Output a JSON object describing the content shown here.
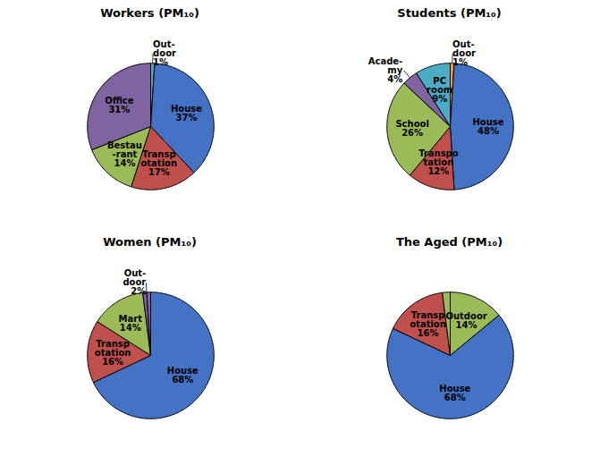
{
  "chart_data": [
    {
      "type": "pie",
      "title": "Workers (PM₁₀)",
      "values": [
        1,
        37,
        17,
        14,
        31
      ],
      "colors": [
        "#4bacc6",
        "#4472c4",
        "#c0504d",
        "#9bbb59",
        "#8064a2"
      ],
      "annotations": [
        {
          "text": "Out-\ndoor\n1%",
          "slices": [
            0
          ]
        },
        {
          "text": "House\n37%",
          "slices": [
            1
          ]
        },
        {
          "text": "Transp\notation\n17%",
          "slices": [
            2
          ]
        },
        {
          "text": "Bestau\n-rant\n14%",
          "slices": [
            3
          ]
        },
        {
          "text": "Office\n31%",
          "slices": [
            4
          ]
        }
      ]
    },
    {
      "type": "pie",
      "title": "Students (PM₁₀)",
      "values": [
        1,
        48,
        12,
        26,
        4,
        9
      ],
      "colors": [
        "#f79646",
        "#4472c4",
        "#c0504d",
        "#9bbb59",
        "#8064a2",
        "#4bacc6"
      ],
      "annotations": [
        {
          "text": "Out-\ndoor\n1%",
          "slices": [
            0
          ]
        },
        {
          "text": "House\n48%",
          "slices": [
            1
          ]
        },
        {
          "text": "Transpo\ntation\n12%",
          "slices": [
            2
          ]
        },
        {
          "text": "School\n26%",
          "slices": [
            3
          ]
        },
        {
          "text": "Acade-\nmy\n4%",
          "slices": [
            4
          ]
        },
        {
          "text": "PC\nroom\n9%",
          "slices": [
            5
          ]
        }
      ]
    },
    {
      "type": "pie",
      "title": "Women (PM₁₀)",
      "values": [
        68,
        16,
        14,
        1,
        1
      ],
      "colors": [
        "#4472c4",
        "#c0504d",
        "#9bbb59",
        "#8064a2",
        "#8064a2"
      ],
      "annotations": [
        {
          "text": "House\n68%",
          "slices": [
            0
          ]
        },
        {
          "text": "Transp\notation\n16%",
          "slices": [
            1
          ]
        },
        {
          "text": "Mart\n14%",
          "slices": [
            2
          ]
        },
        {
          "text": "Out-\ndoor\n2%",
          "slices": [
            3,
            4
          ]
        }
      ]
    },
    {
      "type": "pie",
      "title": "The Aged (PM₁₀)",
      "values": [
        14,
        68,
        16,
        2
      ],
      "colors": [
        "#9bbb59",
        "#4472c4",
        "#c0504d",
        "#9bbb59"
      ],
      "annotations": [
        {
          "text": "Outdoor\n14%",
          "slices": [
            0
          ]
        },
        {
          "text": "House\n68%",
          "slices": [
            1
          ]
        },
        {
          "text": "Transp\notation\n16%",
          "slices": [
            2
          ]
        }
      ]
    }
  ]
}
